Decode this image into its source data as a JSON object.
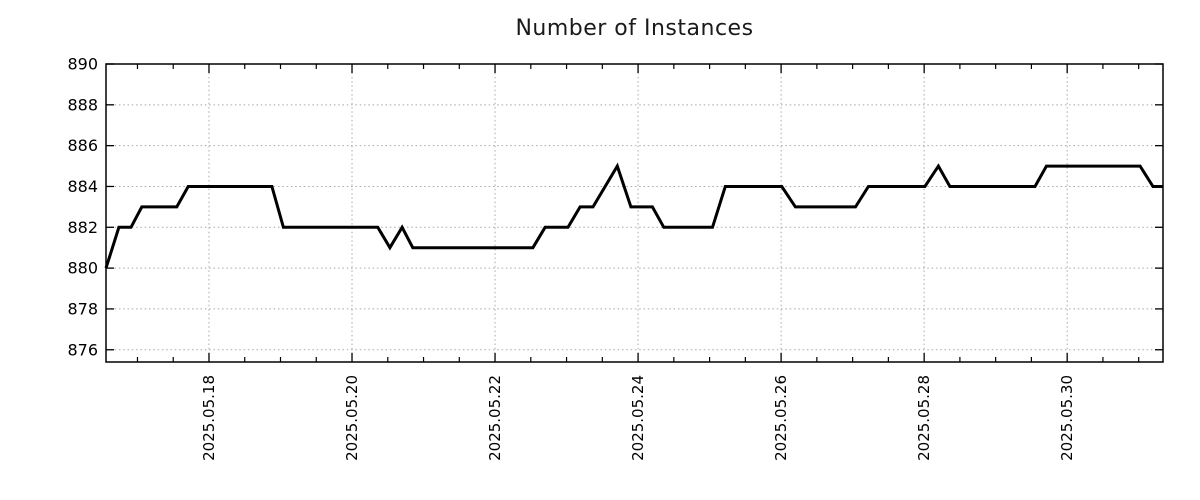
{
  "chart_data": {
    "type": "line",
    "title": "Number of Instances",
    "legend": "none",
    "grid": "dotted",
    "colors": {
      "line": "#000000",
      "grid": "#a8a8a8",
      "axis": "#000000",
      "title": "#1a1a1a",
      "tick_label": "#000000"
    },
    "x_axis": {
      "label": "",
      "start_offset_days": 0,
      "end_offset_days": 14.78,
      "major_ticks": [
        {
          "offset": 1.44,
          "label": "2025.05.18"
        },
        {
          "offset": 3.44,
          "label": "2025.05.20"
        },
        {
          "offset": 5.44,
          "label": "2025.05.22"
        },
        {
          "offset": 7.44,
          "label": "2025.05.24"
        },
        {
          "offset": 9.44,
          "label": "2025.05.26"
        },
        {
          "offset": 11.44,
          "label": "2025.05.28"
        },
        {
          "offset": 13.44,
          "label": "2025.05.30"
        }
      ],
      "minor_tick_start_offset": 0.44,
      "minor_tick_step_days": 0.5,
      "tick_label_rotation_deg": -90
    },
    "y_axis": {
      "label": "",
      "min": 875.4,
      "max": 890,
      "ticks": [
        876,
        878,
        880,
        882,
        884,
        886,
        888,
        890
      ]
    },
    "series": [
      {
        "name": "instances",
        "points_days_value": [
          [
            0.0,
            880
          ],
          [
            0.18,
            882
          ],
          [
            0.35,
            882
          ],
          [
            0.5,
            883
          ],
          [
            0.99,
            883
          ],
          [
            1.15,
            884
          ],
          [
            2.32,
            884
          ],
          [
            2.48,
            882
          ],
          [
            3.8,
            882
          ],
          [
            3.97,
            881
          ],
          [
            4.14,
            882
          ],
          [
            4.29,
            881
          ],
          [
            5.97,
            881
          ],
          [
            6.14,
            882
          ],
          [
            6.46,
            882
          ],
          [
            6.63,
            883
          ],
          [
            6.81,
            883
          ],
          [
            7.15,
            885
          ],
          [
            7.34,
            883
          ],
          [
            7.64,
            883
          ],
          [
            7.8,
            882
          ],
          [
            8.48,
            882
          ],
          [
            8.66,
            884
          ],
          [
            9.45,
            884
          ],
          [
            9.64,
            883
          ],
          [
            10.48,
            883
          ],
          [
            10.66,
            884
          ],
          [
            11.45,
            884
          ],
          [
            11.64,
            885
          ],
          [
            11.8,
            884
          ],
          [
            12.99,
            884
          ],
          [
            13.15,
            885
          ],
          [
            14.46,
            885
          ],
          [
            14.64,
            884
          ],
          [
            14.78,
            884
          ]
        ]
      }
    ]
  }
}
